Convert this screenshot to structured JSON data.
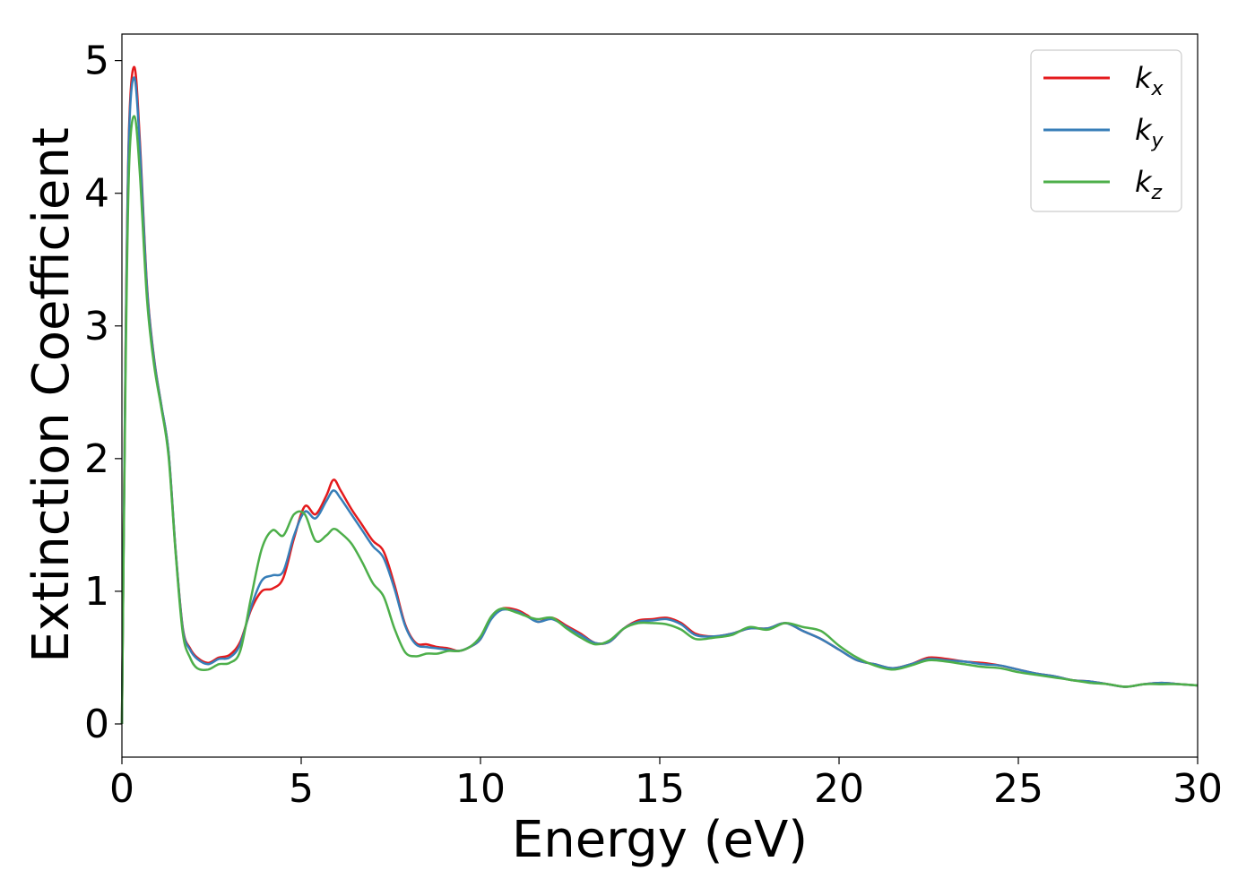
{
  "chart_data": {
    "type": "line",
    "xlabel": "Energy (eV)",
    "ylabel": "Extinction Coefficient",
    "xlim": [
      0,
      30
    ],
    "ylim": [
      -0.25,
      5.2
    ],
    "xticks": [
      "0",
      "5",
      "10",
      "15",
      "20",
      "25",
      "30"
    ],
    "yticks": [
      "0",
      "1",
      "2",
      "3",
      "4",
      "5"
    ],
    "grid": false,
    "legend_position": "top-right",
    "series": [
      {
        "name": "k",
        "subscript": "x",
        "color": "#e41a1c",
        "x": [
          0,
          0.1,
          0.2,
          0.35,
          0.5,
          0.7,
          0.9,
          1.1,
          1.3,
          1.5,
          1.7,
          1.9,
          2.1,
          2.4,
          2.7,
          3.0,
          3.3,
          3.6,
          3.9,
          4.2,
          4.5,
          4.8,
          5.1,
          5.4,
          5.7,
          5.9,
          6.1,
          6.4,
          6.7,
          7.0,
          7.3,
          7.6,
          7.9,
          8.2,
          8.5,
          8.8,
          9.1,
          9.4,
          9.7,
          10.0,
          10.3,
          10.6,
          11.0,
          11.3,
          11.6,
          12.0,
          12.4,
          12.8,
          13.2,
          13.6,
          14.0,
          14.4,
          14.8,
          15.2,
          15.6,
          16.0,
          16.5,
          17.0,
          17.5,
          18.0,
          18.5,
          19.0,
          19.5,
          20.0,
          20.5,
          21.0,
          21.5,
          22.0,
          22.5,
          23.0,
          23.5,
          24.0,
          24.5,
          25.0,
          25.5,
          26.0,
          26.5,
          27.0,
          27.5,
          28.0,
          28.5,
          29.0,
          29.5,
          30.0
        ],
        "values": [
          0,
          2.8,
          4.5,
          4.95,
          4.4,
          3.3,
          2.75,
          2.4,
          2.05,
          1.3,
          0.72,
          0.57,
          0.5,
          0.46,
          0.5,
          0.52,
          0.62,
          0.86,
          1.0,
          1.02,
          1.1,
          1.4,
          1.64,
          1.58,
          1.72,
          1.84,
          1.76,
          1.62,
          1.5,
          1.38,
          1.3,
          1.05,
          0.75,
          0.61,
          0.6,
          0.58,
          0.57,
          0.55,
          0.58,
          0.64,
          0.8,
          0.87,
          0.86,
          0.82,
          0.77,
          0.8,
          0.74,
          0.68,
          0.61,
          0.62,
          0.72,
          0.78,
          0.79,
          0.8,
          0.76,
          0.68,
          0.66,
          0.68,
          0.72,
          0.72,
          0.76,
          0.7,
          0.64,
          0.56,
          0.48,
          0.45,
          0.42,
          0.45,
          0.5,
          0.49,
          0.47,
          0.46,
          0.44,
          0.41,
          0.38,
          0.36,
          0.33,
          0.32,
          0.3,
          0.28,
          0.3,
          0.31,
          0.3,
          0.29
        ]
      },
      {
        "name": "k",
        "subscript": "y",
        "color": "#377eb8",
        "x": [
          0,
          0.1,
          0.2,
          0.35,
          0.5,
          0.7,
          0.9,
          1.1,
          1.3,
          1.5,
          1.7,
          1.9,
          2.1,
          2.4,
          2.7,
          3.0,
          3.3,
          3.6,
          3.9,
          4.2,
          4.5,
          4.8,
          5.1,
          5.4,
          5.7,
          5.9,
          6.1,
          6.4,
          6.7,
          7.0,
          7.3,
          7.6,
          7.9,
          8.2,
          8.5,
          8.8,
          9.1,
          9.4,
          9.7,
          10.0,
          10.3,
          10.6,
          11.0,
          11.3,
          11.6,
          12.0,
          12.4,
          12.8,
          13.2,
          13.6,
          14.0,
          14.4,
          14.8,
          15.2,
          15.6,
          16.0,
          16.5,
          17.0,
          17.5,
          18.0,
          18.5,
          19.0,
          19.5,
          20.0,
          20.5,
          21.0,
          21.5,
          22.0,
          22.5,
          23.0,
          23.5,
          24.0,
          24.5,
          25.0,
          25.5,
          26.0,
          26.5,
          27.0,
          27.5,
          28.0,
          28.5,
          29.0,
          29.5,
          30.0
        ],
        "values": [
          0,
          2.75,
          4.45,
          4.87,
          4.35,
          3.28,
          2.74,
          2.4,
          2.05,
          1.3,
          0.71,
          0.56,
          0.49,
          0.45,
          0.49,
          0.5,
          0.6,
          0.88,
          1.08,
          1.12,
          1.15,
          1.42,
          1.6,
          1.55,
          1.68,
          1.76,
          1.7,
          1.58,
          1.46,
          1.34,
          1.25,
          1.02,
          0.74,
          0.6,
          0.58,
          0.57,
          0.56,
          0.55,
          0.58,
          0.64,
          0.79,
          0.86,
          0.85,
          0.81,
          0.77,
          0.79,
          0.73,
          0.67,
          0.61,
          0.62,
          0.72,
          0.77,
          0.78,
          0.79,
          0.75,
          0.67,
          0.66,
          0.68,
          0.72,
          0.72,
          0.76,
          0.7,
          0.64,
          0.56,
          0.48,
          0.45,
          0.42,
          0.45,
          0.49,
          0.48,
          0.47,
          0.45,
          0.44,
          0.41,
          0.38,
          0.36,
          0.33,
          0.32,
          0.3,
          0.28,
          0.3,
          0.31,
          0.3,
          0.29
        ]
      },
      {
        "name": "k",
        "subscript": "z",
        "color": "#4daf4a",
        "x": [
          0,
          0.1,
          0.2,
          0.35,
          0.5,
          0.7,
          0.9,
          1.1,
          1.3,
          1.5,
          1.7,
          1.9,
          2.1,
          2.4,
          2.7,
          3.0,
          3.3,
          3.6,
          3.9,
          4.2,
          4.5,
          4.8,
          5.1,
          5.4,
          5.7,
          5.9,
          6.1,
          6.4,
          6.7,
          7.0,
          7.3,
          7.6,
          7.9,
          8.2,
          8.5,
          8.8,
          9.1,
          9.4,
          9.7,
          10.0,
          10.3,
          10.6,
          11.0,
          11.3,
          11.6,
          12.0,
          12.4,
          12.8,
          13.2,
          13.6,
          14.0,
          14.4,
          14.8,
          15.2,
          15.6,
          16.0,
          16.5,
          17.0,
          17.5,
          18.0,
          18.5,
          19.0,
          19.5,
          20.0,
          20.5,
          21.0,
          21.5,
          22.0,
          22.5,
          23.0,
          23.5,
          24.0,
          24.5,
          25.0,
          25.5,
          26.0,
          26.5,
          27.0,
          27.5,
          28.0,
          28.5,
          29.0,
          29.5,
          30.0
        ],
        "values": [
          0,
          2.6,
          4.2,
          4.58,
          4.15,
          3.2,
          2.7,
          2.38,
          2.02,
          1.28,
          0.68,
          0.5,
          0.42,
          0.41,
          0.45,
          0.46,
          0.55,
          0.95,
          1.32,
          1.46,
          1.42,
          1.58,
          1.58,
          1.38,
          1.42,
          1.47,
          1.44,
          1.36,
          1.22,
          1.06,
          0.96,
          0.72,
          0.54,
          0.51,
          0.53,
          0.53,
          0.55,
          0.55,
          0.58,
          0.66,
          0.81,
          0.87,
          0.84,
          0.81,
          0.79,
          0.8,
          0.72,
          0.65,
          0.6,
          0.63,
          0.72,
          0.76,
          0.76,
          0.75,
          0.71,
          0.64,
          0.65,
          0.67,
          0.73,
          0.71,
          0.76,
          0.73,
          0.7,
          0.59,
          0.5,
          0.44,
          0.41,
          0.44,
          0.48,
          0.47,
          0.45,
          0.43,
          0.42,
          0.39,
          0.37,
          0.35,
          0.33,
          0.31,
          0.3,
          0.28,
          0.3,
          0.3,
          0.3,
          0.29
        ]
      }
    ]
  }
}
